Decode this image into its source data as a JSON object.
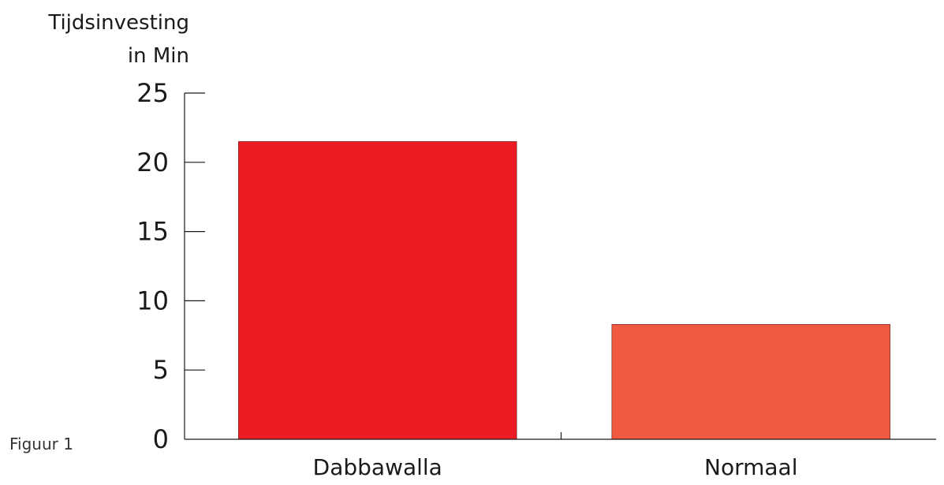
{
  "caption": "Figuur 1",
  "chart_data": {
    "type": "bar",
    "ylabel_lines": [
      "Tijdsinvesting",
      "in Min"
    ],
    "categories": [
      "Dabbawalla",
      "Normaal"
    ],
    "values": [
      21.5,
      8.3
    ],
    "colors": [
      "#ed1c24",
      "#f05a40"
    ],
    "ylim": [
      0,
      25
    ],
    "yticks": [
      0,
      5,
      10,
      15,
      20,
      25
    ],
    "grid": false
  }
}
